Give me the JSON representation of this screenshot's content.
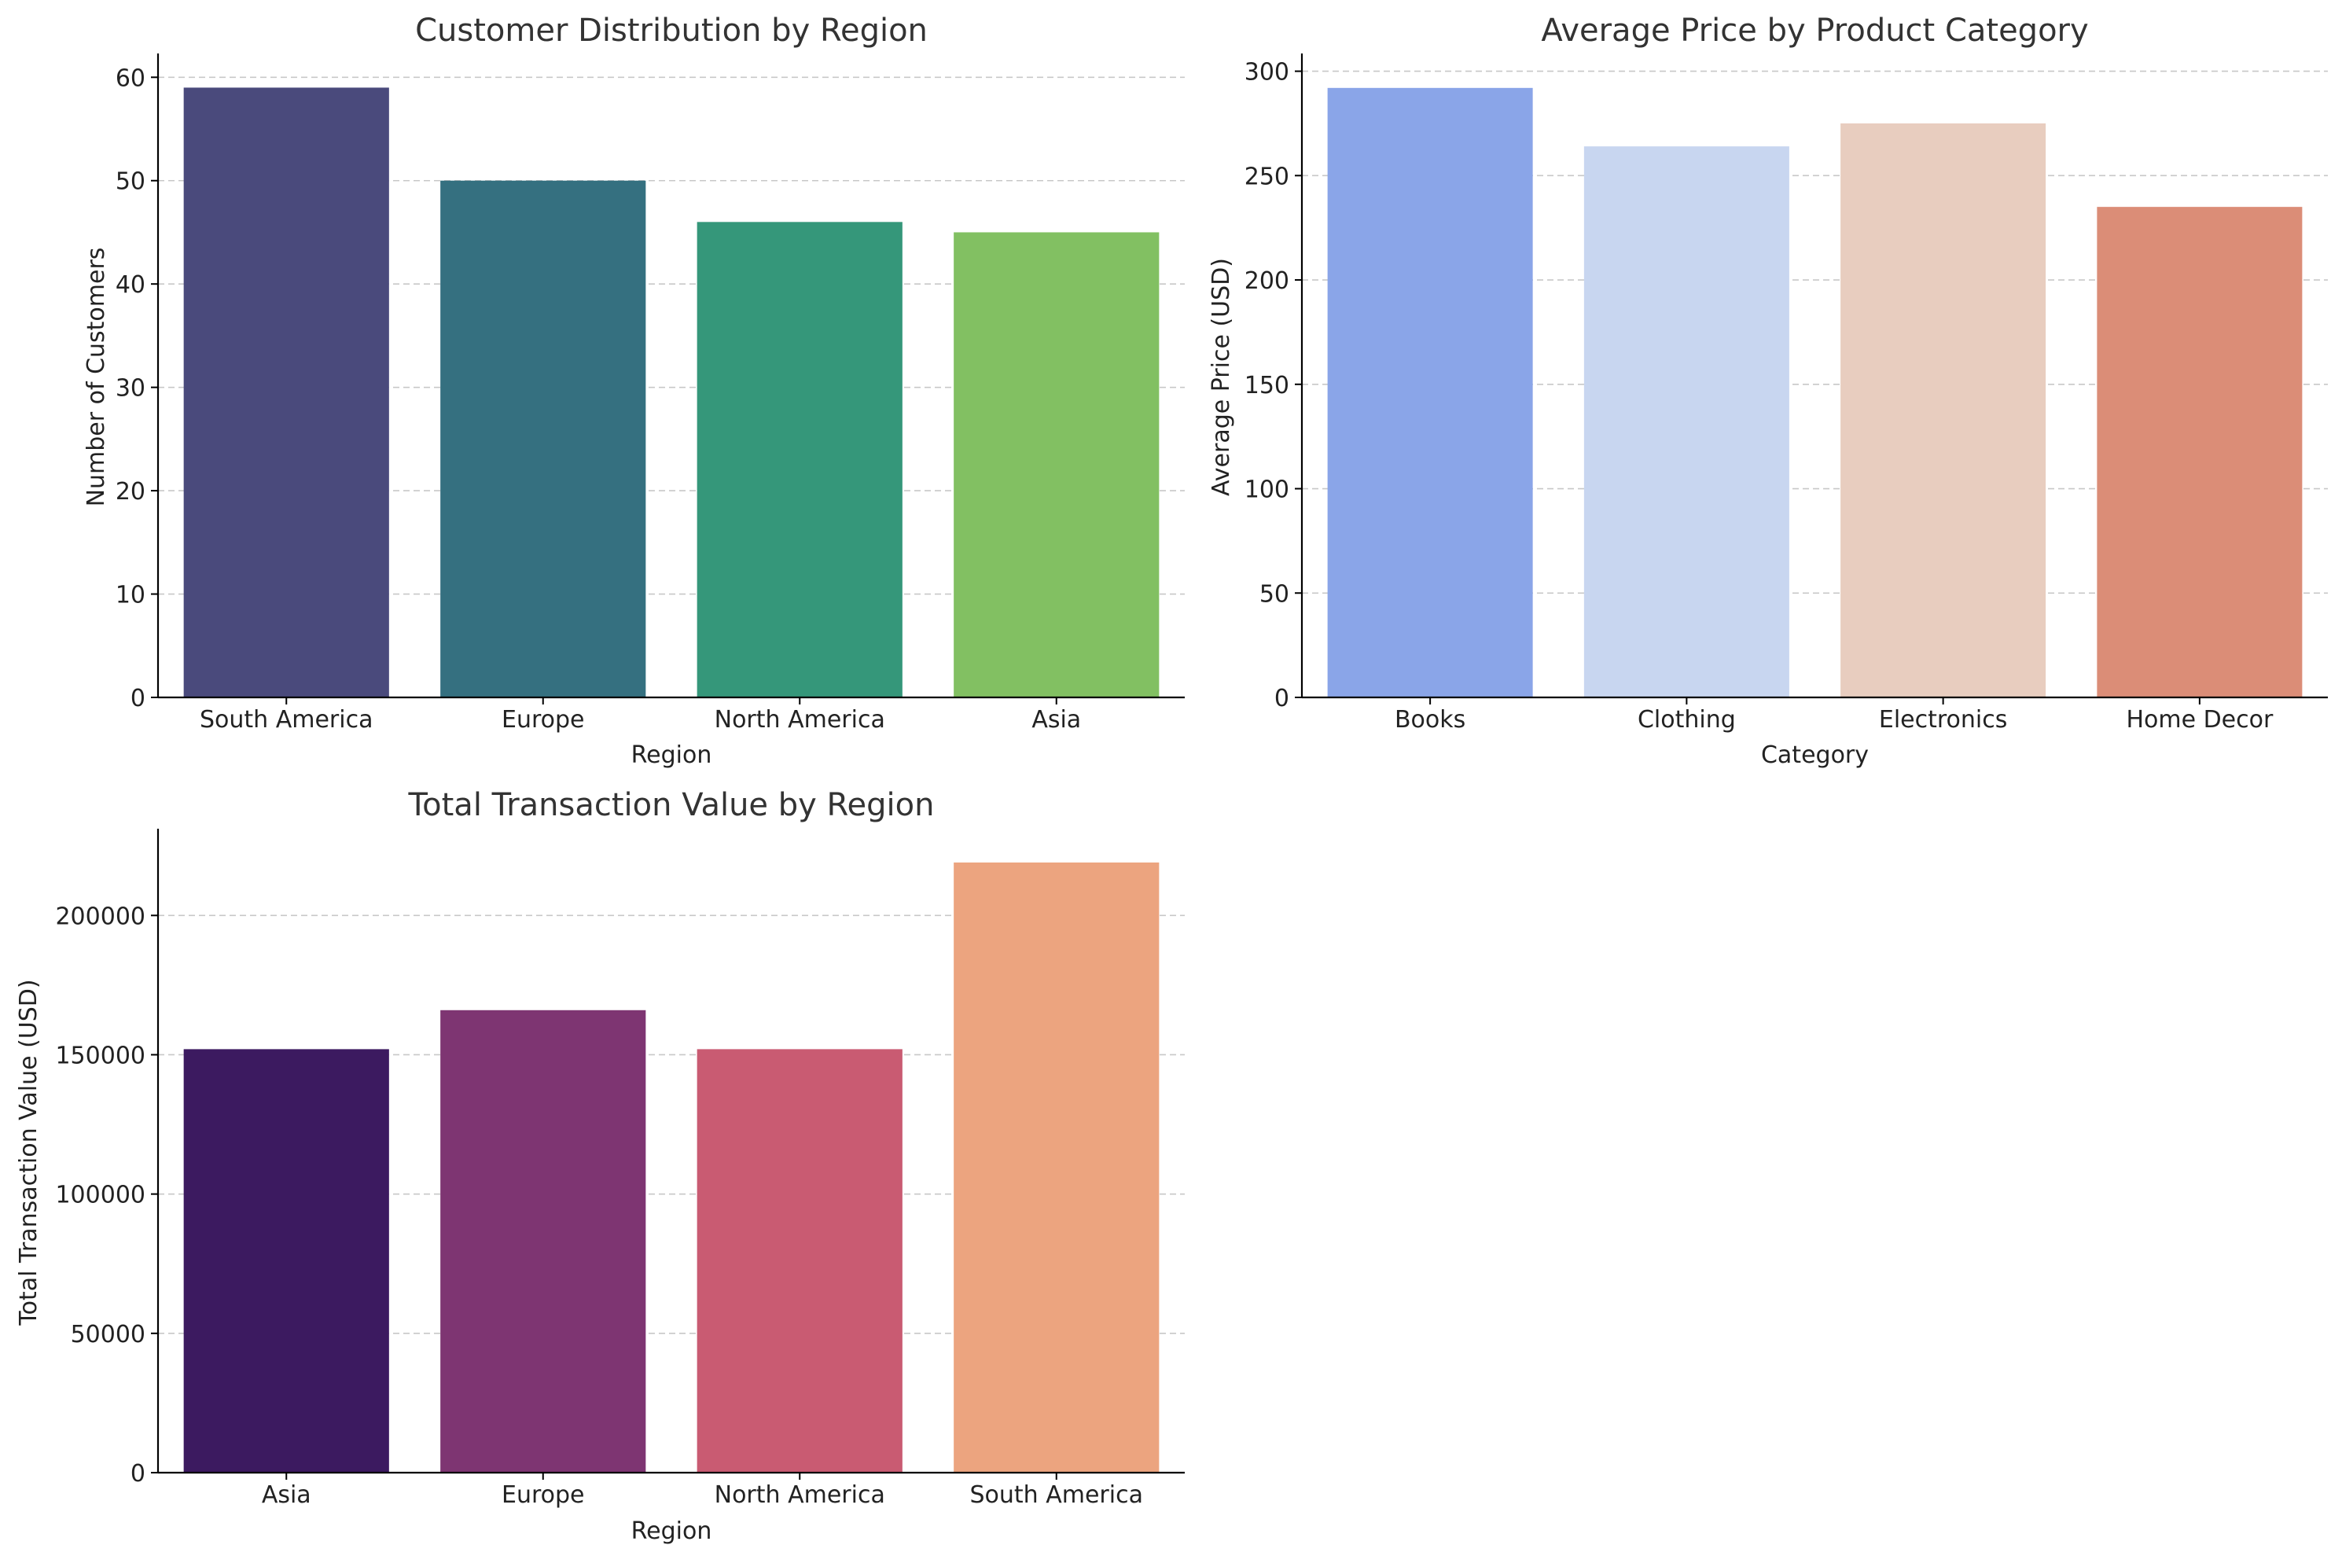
{
  "chart_data": [
    {
      "type": "bar",
      "title": "Customer Distribution by Region",
      "xlabel": "Region",
      "ylabel": "Number of Customers",
      "categories": [
        "South America",
        "Europe",
        "North America",
        "Asia"
      ],
      "values": [
        59,
        50,
        46,
        45
      ],
      "colors": [
        "#4a4a7c",
        "#357080",
        "#35977a",
        "#82c062"
      ],
      "ylim": [
        0,
        62
      ],
      "yticks": [
        0,
        10,
        20,
        30,
        40,
        50,
        60
      ],
      "ytick_labels": [
        "0",
        "10",
        "20",
        "30",
        "40",
        "50",
        "60"
      ],
      "grid": true
    },
    {
      "type": "bar",
      "title": "Average Price by Product Category",
      "xlabel": "Category",
      "ylabel": "Average Price (USD)",
      "categories": [
        "Books",
        "Clothing",
        "Electronics",
        "Home Decor"
      ],
      "values": [
        292,
        264,
        275,
        235
      ],
      "colors": [
        "#8aa5e8",
        "#c8d6f0",
        "#e8cdbf",
        "#db8d77"
      ],
      "ylim": [
        0,
        307
      ],
      "yticks": [
        0,
        50,
        100,
        150,
        200,
        250,
        300
      ],
      "ytick_labels": [
        "0",
        "50",
        "100",
        "150",
        "200",
        "250",
        "300"
      ],
      "grid": true
    },
    {
      "type": "bar",
      "title": "Total Transaction Value by Region",
      "xlabel": "Region",
      "ylabel": "Total Transaction Value (USD)",
      "categories": [
        "Asia",
        "Europe",
        "North America",
        "South America"
      ],
      "values": [
        152000,
        166000,
        152000,
        219000
      ],
      "colors": [
        "#3c1a60",
        "#7e3572",
        "#c95b72",
        "#eca47f"
      ],
      "ylim": [
        0,
        230000
      ],
      "yticks": [
        0,
        50000,
        100000,
        150000,
        200000
      ],
      "ytick_labels": [
        "0",
        "50000",
        "100000",
        "150000",
        "200000"
      ],
      "grid": true
    }
  ]
}
